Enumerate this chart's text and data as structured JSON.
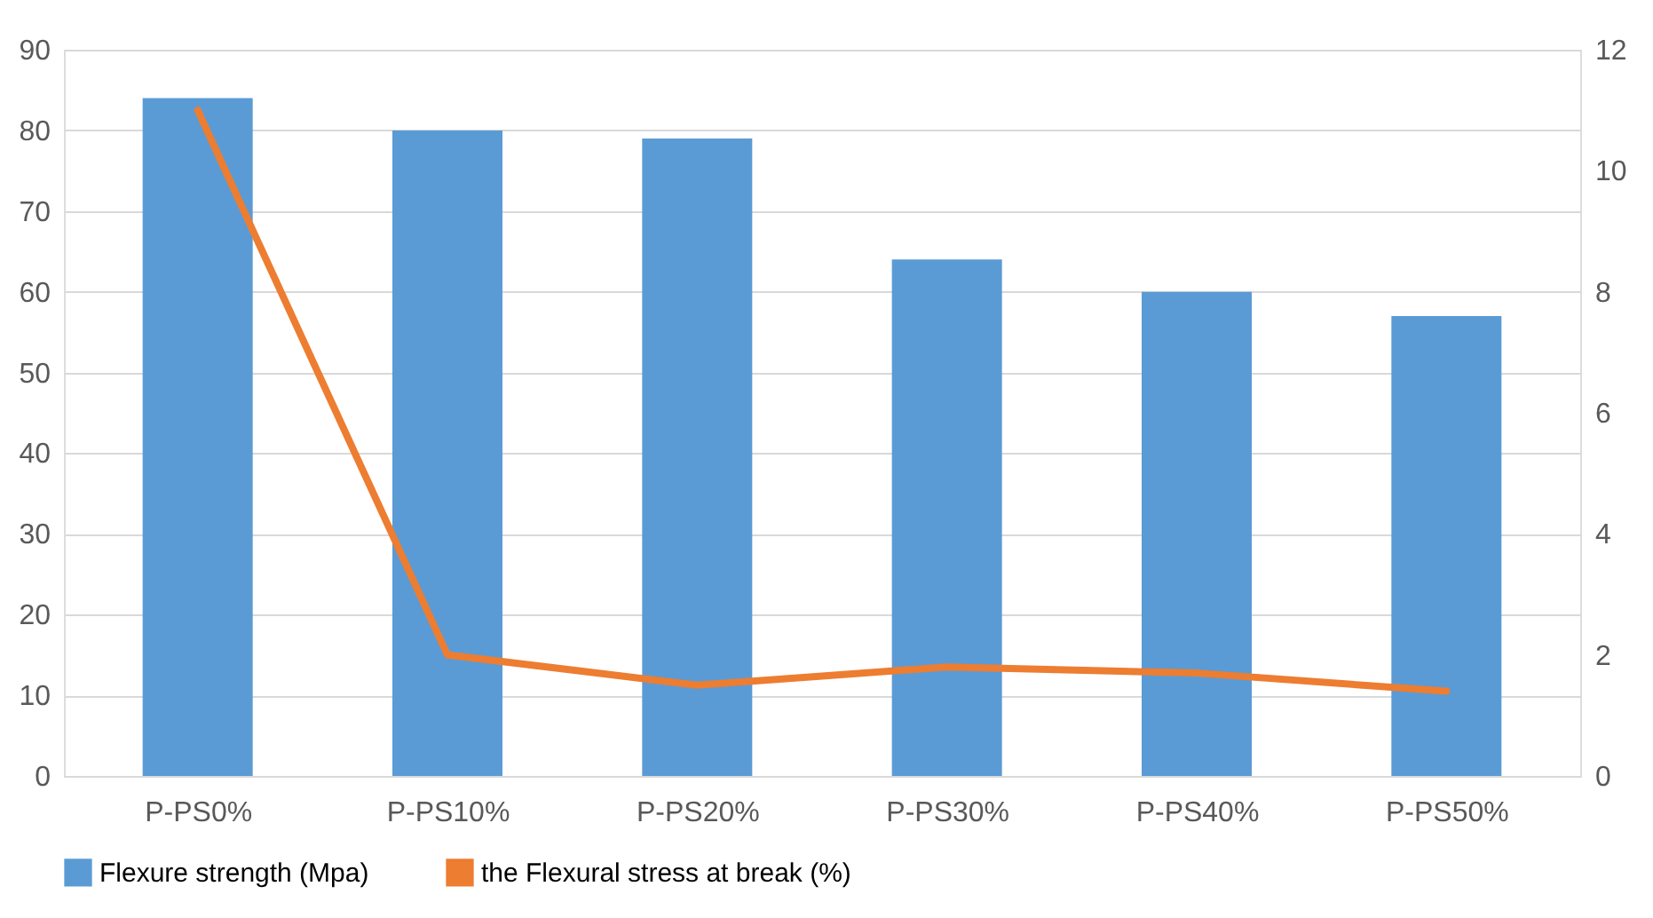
{
  "chart_data": {
    "type": "bar",
    "categories": [
      "P-PS0%",
      "P-PS10%",
      "P-PS20%",
      "P-PS30%",
      "P-PS40%",
      "P-PS50%"
    ],
    "series": [
      {
        "name": "Flexure strength (Mpa)",
        "color": "#5b9bd5",
        "values": [
          84,
          80,
          79,
          64,
          60,
          57
        ]
      },
      {
        "name": "the Flexural stress at break (%)",
        "type": "line",
        "axis": "y2",
        "color": "#ed7d31",
        "values": [
          11,
          2,
          1.5,
          1.8,
          1.7,
          1.4
        ]
      }
    ],
    "ylim": [
      0,
      90
    ],
    "yticks": [
      0,
      10,
      20,
      30,
      40,
      50,
      60,
      70,
      80,
      90
    ],
    "y2lim": [
      0,
      12
    ],
    "y2ticks": [
      0,
      2,
      4,
      6,
      8,
      10,
      12
    ],
    "grid": "y",
    "legend": "bottom"
  }
}
